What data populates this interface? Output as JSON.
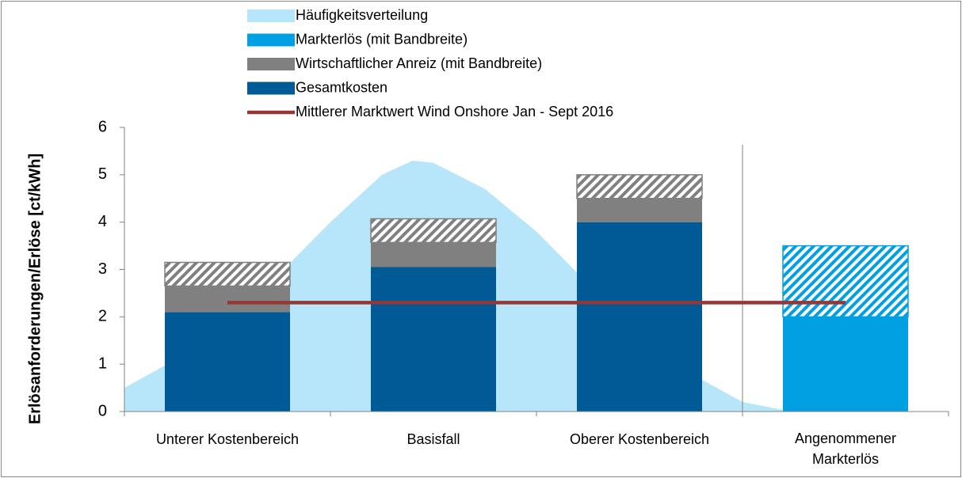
{
  "chart_data": {
    "type": "bar",
    "y_label": "Erlösanforderungen/Erlöse [ct/kWh]",
    "categories": [
      "Unterer Kostenbereich",
      "Basisfall",
      "Oberer Kostenbereich",
      "Angenommener Markterlös"
    ],
    "ylim": [
      0,
      6
    ],
    "yticks": [
      0,
      1,
      2,
      3,
      4,
      5,
      6
    ],
    "series": [
      {
        "name": "Häufigkeitsverteilung",
        "type": "area",
        "color": "#b7e6fa",
        "x": [
          -0.5,
          -0.25,
          0,
          0.25,
          0.5,
          0.75,
          0.9,
          1.0,
          1.25,
          1.5,
          1.75,
          2.0,
          2.25,
          2.5,
          2.74
        ],
        "values": [
          0.5,
          1.1,
          1.9,
          2.9,
          4.0,
          5.0,
          5.3,
          5.25,
          4.7,
          3.8,
          2.7,
          1.6,
          0.8,
          0.2,
          0
        ]
      },
      {
        "name": "Markterlös (mit Bandbreite)",
        "type": "bar",
        "color": "#00a0e3",
        "values": [
          null,
          null,
          null,
          2.0
        ],
        "bandwidth": [
          null,
          null,
          null,
          1.5
        ]
      },
      {
        "name": "Wirtschaftlicher Anreiz (mit Bandbreite)",
        "type": "bar",
        "color": "#808080",
        "values": [
          0.55,
          0.52,
          0.5,
          null
        ],
        "bandwidth": [
          0.5,
          0.5,
          0.5,
          null
        ]
      },
      {
        "name": "Gesamtkosten",
        "type": "bar",
        "color": "#005a96",
        "values": [
          2.1,
          3.05,
          4.0,
          null
        ]
      },
      {
        "name": "Mittlerer Marktwert Wind Onshore Jan - Sept 2016",
        "type": "line",
        "color": "#953735",
        "values": [
          2.3,
          2.3,
          2.3,
          2.3
        ]
      }
    ]
  }
}
